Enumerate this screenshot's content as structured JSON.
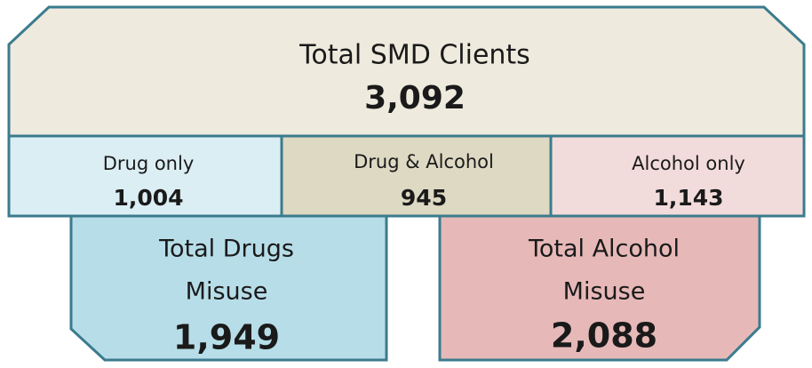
{
  "total": {
    "label": "Total SMD Clients",
    "value": "3,092"
  },
  "breakdown": [
    {
      "label": "Drug only",
      "value": "1,004"
    },
    {
      "label": "Drug & Alcohol",
      "value": "945"
    },
    {
      "label": "Alcohol only",
      "value": "1,143"
    }
  ],
  "totals": [
    {
      "lines": [
        "Total Drugs",
        "Misuse"
      ],
      "value": "1,949"
    },
    {
      "lines": [
        "Total Alcohol",
        "Misuse"
      ],
      "value": "2,088"
    }
  ]
}
